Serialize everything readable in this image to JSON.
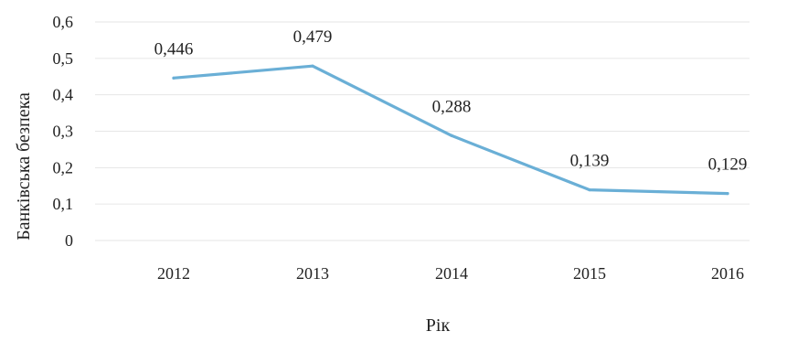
{
  "chart_data": {
    "type": "line",
    "categories": [
      "2012",
      "2013",
      "2014",
      "2015",
      "2016"
    ],
    "series": [
      {
        "values": [
          0.446,
          0.479,
          0.288,
          0.139,
          0.129
        ],
        "data_labels": [
          "0,446",
          "0,479",
          "0,288",
          "0,139",
          "0,129"
        ]
      }
    ],
    "xlabel": "Рік",
    "ylabel": "Банківська безпека",
    "ylim": [
      0,
      0.6
    ],
    "yticks": [
      0,
      0.1,
      0.2,
      0.3,
      0.4,
      0.5,
      0.6
    ],
    "ytick_labels": [
      "0",
      "0,1",
      "0,2",
      "0,3",
      "0,4",
      "0,5",
      "0,6"
    ],
    "grid": true,
    "legend": "none",
    "colors": {
      "series": "#6aafd6",
      "grid": "#e6e6e6"
    }
  }
}
